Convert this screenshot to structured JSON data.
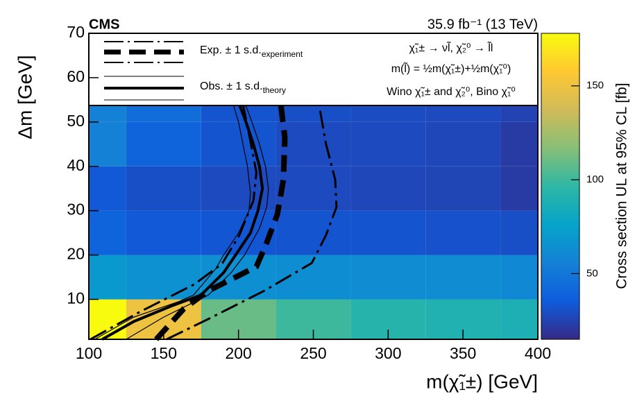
{
  "chart_data": {
    "type": "heatmap",
    "experiment": "CMS",
    "title": "35.9 fb⁻¹ (13 TeV)",
    "xlabel": "m(χ̃₁±) [GeV]",
    "ylabel": "Δm [GeV]",
    "zlabel": "Cross section UL at 95% CL [fb]",
    "xlim": [
      100,
      400
    ],
    "xticks": [
      100,
      150,
      200,
      250,
      300,
      350,
      400
    ],
    "ylim": [
      1,
      70
    ],
    "yticks": [
      10,
      20,
      30,
      40,
      50,
      60,
      70
    ],
    "zlim": [
      15,
      178
    ],
    "zticks": [
      50,
      100,
      150
    ],
    "colormap": [
      "#352a87",
      "#0f5cdd",
      "#1481d6",
      "#06a4ca",
      "#2eb7a4",
      "#87bf77",
      "#d1bb59",
      "#fec832",
      "#f9fb0e"
    ],
    "xbins": [
      100,
      125,
      175,
      225,
      275,
      325,
      375,
      400
    ],
    "ybins": [
      1,
      10,
      20,
      30,
      40,
      50,
      60
    ],
    "z": [
      [
        178,
        150,
        110,
        100,
        92,
        90,
        88
      ],
      [
        70,
        65,
        64,
        63,
        62,
        62,
        60
      ],
      [
        40,
        34,
        33,
        32,
        32,
        31,
        30
      ],
      [
        34,
        30,
        28,
        28,
        27,
        26,
        22
      ],
      [
        55,
        40,
        32,
        28,
        28,
        27,
        22
      ],
      [
        55,
        45,
        32,
        30,
        29,
        28,
        25
      ]
    ],
    "contours": [
      {
        "style": "thin",
        "color": "#000000",
        "x": [
          104,
          130,
          160,
          170,
          185,
          190,
          200,
          207,
          208,
          206,
          203,
          200,
          196
        ],
        "y": [
          1,
          6,
          9.5,
          11,
          17,
          20,
          25,
          30,
          34,
          40,
          45,
          50,
          54.5
        ]
      },
      {
        "style": "thin",
        "color": "#000000",
        "x": [
          125,
          150,
          180,
          195,
          204,
          214,
          219,
          220,
          218,
          214,
          209,
          204
        ],
        "y": [
          1,
          6,
          11,
          16,
          20,
          26,
          31,
          35,
          40,
          45,
          50,
          54.5
        ]
      },
      {
        "style": "solid",
        "color": "#000000",
        "x": [
          109,
          130,
          155,
          175,
          190,
          200,
          208,
          213,
          216,
          214,
          210,
          205,
          200
        ],
        "y": [
          1,
          5,
          8.5,
          11,
          16,
          21,
          25,
          30,
          35,
          40,
          45,
          50,
          54.5
        ]
      },
      {
        "style": "dashdot",
        "color": "#000000",
        "x": [
          101,
          133,
          170.5,
          189,
          200.6,
          210,
          212,
          207.5,
          203
        ],
        "y": [
          1,
          7,
          13.4,
          18,
          24.5,
          32.3,
          38.6,
          46.5,
          54
        ]
      },
      {
        "style": "dashed",
        "color": "#000000",
        "x": [
          145,
          163.5,
          179.7,
          198,
          212,
          219,
          226,
          230,
          231,
          228.4
        ],
        "y": [
          1,
          7.9,
          11.9,
          15,
          17.4,
          22.9,
          29.2,
          37,
          46.5,
          53.6
        ]
      },
      {
        "style": "dashdot",
        "color": "#000000",
        "x": [
          152,
          180,
          217,
          249,
          258.5,
          265.5,
          264.6,
          258.5,
          254
        ],
        "y": [
          1,
          5.6,
          11.9,
          18.2,
          24.5,
          30.8,
          37,
          45,
          53.6
        ]
      }
    ],
    "legend": [
      {
        "label": "Exp. ± 1 s.d.",
        "sub": "experiment"
      },
      {
        "label": "Obs. ± 1 s.d.",
        "sub": "theory"
      }
    ],
    "annotations": [
      "χ̃₁± → νl̃, χ̃₂⁰ → l̃l",
      "m(l̃) = ½m(χ̃₁±)+½m(χ̃₁⁰)",
      "Wino χ̃₁± and χ̃₂⁰, Bino χ̃₁⁰"
    ]
  }
}
